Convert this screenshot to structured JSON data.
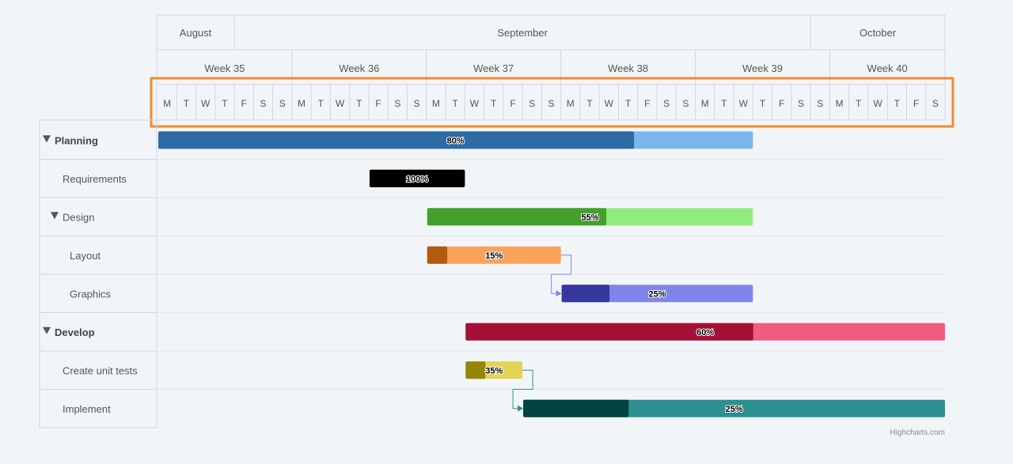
{
  "chart_data": {
    "type": "gantt",
    "timeline": {
      "start": "2023-08-28",
      "end": "2023-10-08",
      "months": [
        "August",
        "September",
        "October"
      ],
      "weeks": [
        "Week 35",
        "Week 36",
        "Week 37",
        "Week 38",
        "Week 39",
        "Week 40"
      ],
      "day_letters": [
        "M",
        "T",
        "W",
        "T",
        "F",
        "S",
        "S"
      ],
      "highlighted_row": "days"
    },
    "tasks": [
      {
        "name": "Planning",
        "level": 0,
        "collapsible": true,
        "start": "2023-08-28",
        "end": "2023-09-28",
        "completed": 0.8,
        "label": "80%",
        "color": "#7cb5ec",
        "fill": "#2e6aa6"
      },
      {
        "name": "Requirements",
        "level": 1,
        "collapsible": false,
        "start": "2023-09-08",
        "end": "2023-09-13",
        "completed": 1.0,
        "label": "100%",
        "color": "#000000",
        "fill": "#000000"
      },
      {
        "name": "Design",
        "level": 1,
        "collapsible": true,
        "start": "2023-09-11",
        "end": "2023-09-28",
        "completed": 0.55,
        "label": "55%",
        "color": "#90ed7d",
        "fill": "#43a02d"
      },
      {
        "name": "Layout",
        "level": 2,
        "collapsible": false,
        "start": "2023-09-11",
        "end": "2023-09-18",
        "completed": 0.15,
        "label": "15%",
        "color": "#f7a35c",
        "fill": "#b15a10"
      },
      {
        "name": "Graphics",
        "level": 2,
        "collapsible": false,
        "start": "2023-09-18",
        "end": "2023-09-28",
        "completed": 0.25,
        "label": "25%",
        "color": "#8085e9",
        "fill": "#34379c"
      },
      {
        "name": "Develop",
        "level": 0,
        "collapsible": true,
        "start": "2023-09-13",
        "end": "2023-10-08",
        "completed": 0.6,
        "label": "60%",
        "color": "#f15c80",
        "fill": "#a31236"
      },
      {
        "name": "Create unit tests",
        "level": 1,
        "collapsible": false,
        "start": "2023-09-13",
        "end": "2023-09-16",
        "completed": 0.35,
        "label": "35%",
        "color": "#e4d354",
        "fill": "#968508"
      },
      {
        "name": "Implement",
        "level": 1,
        "collapsible": false,
        "start": "2023-09-16",
        "end": "2023-10-08",
        "completed": 0.25,
        "label": "25%",
        "color": "#2b908f",
        "fill": "#004341"
      }
    ],
    "dependencies": [
      {
        "from": "Layout",
        "to": "Graphics",
        "color": "#8085e9"
      },
      {
        "from": "Create unit tests",
        "to": "Implement",
        "color": "#2b908f"
      }
    ],
    "highlight_color": "#f28a2e",
    "grid_color": "#ccd6eb"
  },
  "credits": "Highcharts.com"
}
